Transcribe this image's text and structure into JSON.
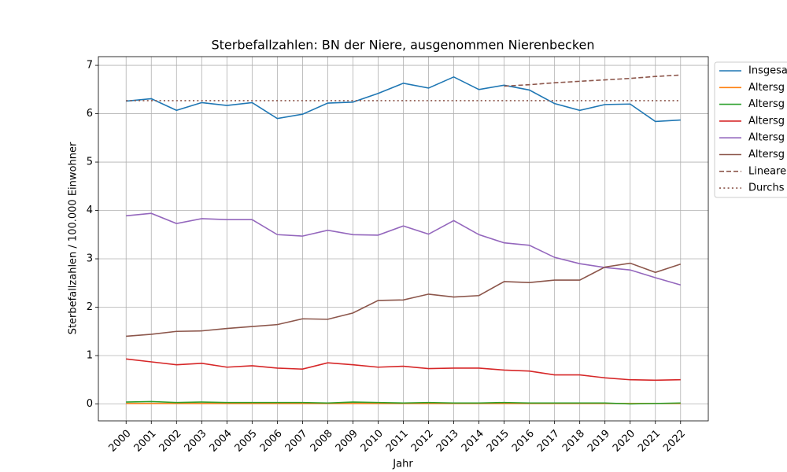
{
  "chart_data": {
    "type": "line",
    "title": "Sterbefallzahlen: BN der Niere, ausgenommen Nierenbecken",
    "xlabel": "Jahr",
    "ylabel": "Sterbefallzahlen / 100.000 Einwohner",
    "x": [
      2000,
      2001,
      2002,
      2003,
      2004,
      2005,
      2006,
      2007,
      2008,
      2009,
      2010,
      2011,
      2012,
      2013,
      2014,
      2015,
      2016,
      2017,
      2018,
      2019,
      2020,
      2021,
      2022
    ],
    "xlim": [
      1998.9,
      2023.1
    ],
    "xticks": [
      2000,
      2001,
      2002,
      2003,
      2004,
      2005,
      2006,
      2007,
      2008,
      2009,
      2010,
      2011,
      2012,
      2013,
      2014,
      2015,
      2016,
      2017,
      2018,
      2019,
      2020,
      2021,
      2022
    ],
    "ylim": [
      -0.35,
      7.18
    ],
    "yticks": [
      0,
      1,
      2,
      3,
      4,
      5,
      6,
      7
    ],
    "grid": true,
    "legend": "outside-upper-right",
    "series": [
      {
        "name": "Insgesa",
        "color": "#1f77b4",
        "linestyle": "solid",
        "values": [
          6.26,
          6.31,
          6.07,
          6.23,
          6.17,
          6.23,
          5.9,
          5.99,
          6.22,
          6.24,
          6.42,
          6.63,
          6.53,
          6.76,
          6.5,
          6.59,
          6.49,
          6.21,
          6.07,
          6.19,
          6.2,
          5.84,
          5.87
        ]
      },
      {
        "name": "Altersg",
        "color": "#ff7f0e",
        "linestyle": "solid",
        "values": [
          0.01,
          0.01,
          0.01,
          0.01,
          0.01,
          0.01,
          0.01,
          0.01,
          0.01,
          0.01,
          0.01,
          0.01,
          0.01,
          0.01,
          0.01,
          0.01,
          0.01,
          0.01,
          0.01,
          0.01,
          0.01,
          0.01,
          0.01
        ]
      },
      {
        "name": "Altersg",
        "color": "#2ca02c",
        "linestyle": "solid",
        "values": [
          0.04,
          0.05,
          0.03,
          0.04,
          0.03,
          0.03,
          0.03,
          0.03,
          0.02,
          0.04,
          0.03,
          0.02,
          0.03,
          0.02,
          0.02,
          0.03,
          0.02,
          0.02,
          0.02,
          0.02,
          0.0,
          0.01,
          0.02
        ]
      },
      {
        "name": "Altersg",
        "color": "#d62728",
        "linestyle": "solid",
        "values": [
          0.93,
          0.87,
          0.81,
          0.84,
          0.76,
          0.79,
          0.74,
          0.72,
          0.85,
          0.81,
          0.76,
          0.78,
          0.73,
          0.74,
          0.74,
          0.7,
          0.68,
          0.6,
          0.6,
          0.54,
          0.5,
          0.49,
          0.5
        ]
      },
      {
        "name": "Altersg",
        "color": "#9467bd",
        "linestyle": "solid",
        "values": [
          3.89,
          3.94,
          3.73,
          3.83,
          3.81,
          3.81,
          3.5,
          3.47,
          3.59,
          3.5,
          3.49,
          3.68,
          3.51,
          3.79,
          3.5,
          3.33,
          3.28,
          3.03,
          2.9,
          2.82,
          2.77,
          2.61,
          2.46
        ]
      },
      {
        "name": "Altersg",
        "color": "#8c564b",
        "linestyle": "solid",
        "values": [
          1.4,
          1.44,
          1.5,
          1.51,
          1.56,
          1.6,
          1.64,
          1.76,
          1.75,
          1.88,
          2.14,
          2.15,
          2.27,
          2.21,
          2.24,
          2.53,
          2.51,
          2.56,
          2.56,
          2.83,
          2.91,
          2.72,
          2.89
        ]
      },
      {
        "name": "Lineare",
        "color": "#8c564b",
        "linestyle": "dashed",
        "values": [
          null,
          null,
          null,
          null,
          null,
          null,
          null,
          null,
          null,
          null,
          null,
          null,
          null,
          null,
          null,
          6.57,
          6.6,
          6.64,
          6.67,
          6.7,
          6.73,
          6.77,
          6.8
        ]
      },
      {
        "name": "Durchs",
        "color": "#8c564b",
        "linestyle": "dotted",
        "values": [
          6.27,
          6.27,
          6.27,
          6.27,
          6.27,
          6.27,
          6.27,
          6.27,
          6.27,
          6.27,
          6.27,
          6.27,
          6.27,
          6.27,
          6.27,
          6.27,
          6.27,
          6.27,
          6.27,
          6.27,
          6.27,
          6.27,
          6.27
        ]
      }
    ]
  }
}
